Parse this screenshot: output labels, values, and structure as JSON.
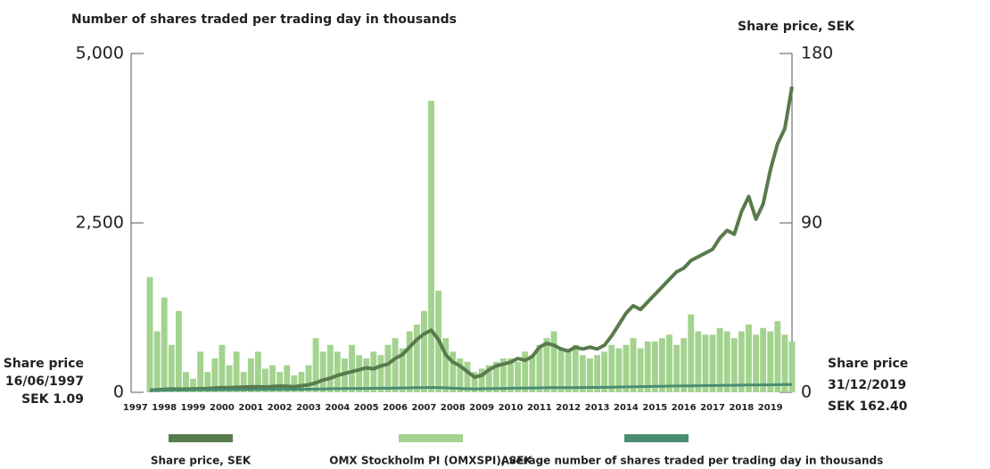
{
  "chart_data": {
    "type": "bar-line",
    "left_axis_label": "Number of shares traded per trading day in thousands",
    "right_axis_label": "Share price, SEK",
    "annotations": [
      [
        "Share price",
        "16/06/1997",
        "SEK 1.09"
      ],
      [
        "Share price",
        "31/12/2019",
        "SEK 162.40"
      ]
    ],
    "x": [
      1997.5,
      1997.75,
      1998,
      1998.25,
      1998.5,
      1998.75,
      1999,
      1999.25,
      1999.5,
      1999.75,
      2000,
      2000.25,
      2000.5,
      2000.75,
      2001,
      2001.25,
      2001.5,
      2001.75,
      2002,
      2002.25,
      2002.5,
      2002.75,
      2003,
      2003.25,
      2003.5,
      2003.75,
      2004,
      2004.25,
      2004.5,
      2004.75,
      2005,
      2005.25,
      2005.5,
      2005.75,
      2006,
      2006.25,
      2006.5,
      2006.75,
      2007,
      2007.25,
      2007.5,
      2007.75,
      2008,
      2008.25,
      2008.5,
      2008.75,
      2009,
      2009.25,
      2009.5,
      2009.75,
      2010,
      2010.25,
      2010.5,
      2010.75,
      2011,
      2011.25,
      2011.5,
      2011.75,
      2012,
      2012.25,
      2012.5,
      2012.75,
      2013,
      2013.25,
      2013.5,
      2013.75,
      2014,
      2014.25,
      2014.5,
      2014.75,
      2015,
      2015.25,
      2015.5,
      2015.75,
      2016,
      2016.25,
      2016.5,
      2016.75,
      2017,
      2017.25,
      2017.5,
      2017.75,
      2018,
      2018.25,
      2018.5,
      2018.75,
      2019,
      2019.25,
      2019.5,
      2019.75
    ],
    "series": [
      {
        "name": "Share price, SEK",
        "color": "#587a4c",
        "axis": "y2",
        "kind": "line",
        "values": [
          1.09,
          1.3,
          1.5,
          1.8,
          1.6,
          1.7,
          1.8,
          1.9,
          2.0,
          2.2,
          2.5,
          2.4,
          2.6,
          2.8,
          2.9,
          3.0,
          2.8,
          3.1,
          3.3,
          3.2,
          3.0,
          3.5,
          4.0,
          5.0,
          6.5,
          7.5,
          9,
          10,
          11,
          12,
          13,
          12.5,
          14,
          15,
          18,
          20,
          24,
          28,
          31,
          33,
          28,
          20,
          16,
          14,
          11,
          8,
          9,
          12,
          14,
          15,
          16,
          18,
          17,
          19,
          24,
          26,
          25,
          23,
          22,
          24,
          23,
          24,
          23,
          25,
          30,
          36,
          42,
          46,
          44,
          48,
          52,
          56,
          60,
          64,
          66,
          70,
          72,
          74,
          76,
          82,
          86,
          84,
          96,
          104,
          92,
          100,
          118,
          132,
          140,
          162.4
        ]
      },
      {
        "name": "OMX Stockholm PI (OMXSPI), SEK",
        "color": "#a3d38f",
        "kind": "bar",
        "values": [
          1700,
          900,
          1400,
          700,
          1200,
          300,
          200,
          600,
          300,
          500,
          700,
          400,
          600,
          300,
          500,
          600,
          350,
          400,
          300,
          400,
          250,
          300,
          400,
          800,
          600,
          700,
          600,
          500,
          700,
          550,
          500,
          600,
          550,
          700,
          800,
          650,
          900,
          1000,
          1200,
          4300,
          1500,
          800,
          600,
          500,
          450,
          300,
          350,
          400,
          450,
          500,
          500,
          450,
          600,
          550,
          700,
          800,
          900,
          650,
          600,
          700,
          550,
          500,
          550,
          600,
          700,
          650,
          700,
          800,
          650,
          750,
          750,
          800,
          850,
          700,
          800,
          1150,
          900,
          850,
          850,
          950,
          900,
          800,
          900,
          1000,
          850,
          950,
          900,
          1050,
          850,
          750
        ]
      },
      {
        "name": "Average number of shares traded per trading day in thousands",
        "color": "#4a8c72",
        "kind": "line",
        "values": [
          30,
          30,
          32,
          33,
          33,
          34,
          35,
          35,
          36,
          36,
          38,
          38,
          39,
          40,
          40,
          41,
          42,
          42,
          43,
          44,
          44,
          45,
          46,
          48,
          50,
          52,
          54,
          55,
          56,
          57,
          58,
          59,
          60,
          61,
          62,
          64,
          66,
          68,
          70,
          72,
          70,
          66,
          60,
          56,
          52,
          50,
          52,
          54,
          56,
          58,
          60,
          62,
          63,
          64,
          66,
          67,
          68,
          68,
          69,
          70,
          71,
          72,
          73,
          74,
          76,
          78,
          80,
          82,
          84,
          86,
          88,
          90,
          92,
          94,
          95,
          96,
          98,
          100,
          100,
          102,
          104,
          104,
          106,
          108,
          108,
          110,
          110,
          112,
          114,
          116
        ]
      }
    ],
    "xlim": [
      1996.85,
      2019.75
    ],
    "xticks": [
      1997,
      1998,
      1999,
      2000,
      2001,
      2002,
      2003,
      2004,
      2005,
      2006,
      2007,
      2008,
      2009,
      2010,
      2011,
      2012,
      2013,
      2014,
      2015,
      2016,
      2017,
      2018,
      2019
    ],
    "ylim": [
      0,
      5000
    ],
    "yticks": [
      0,
      {
        "value": 2500,
        "label": "2,500"
      },
      {
        "value": 5000,
        "label": "5,000"
      }
    ],
    "y2lim": [
      0,
      180
    ],
    "y2ticks": [
      0,
      90,
      180
    ]
  }
}
